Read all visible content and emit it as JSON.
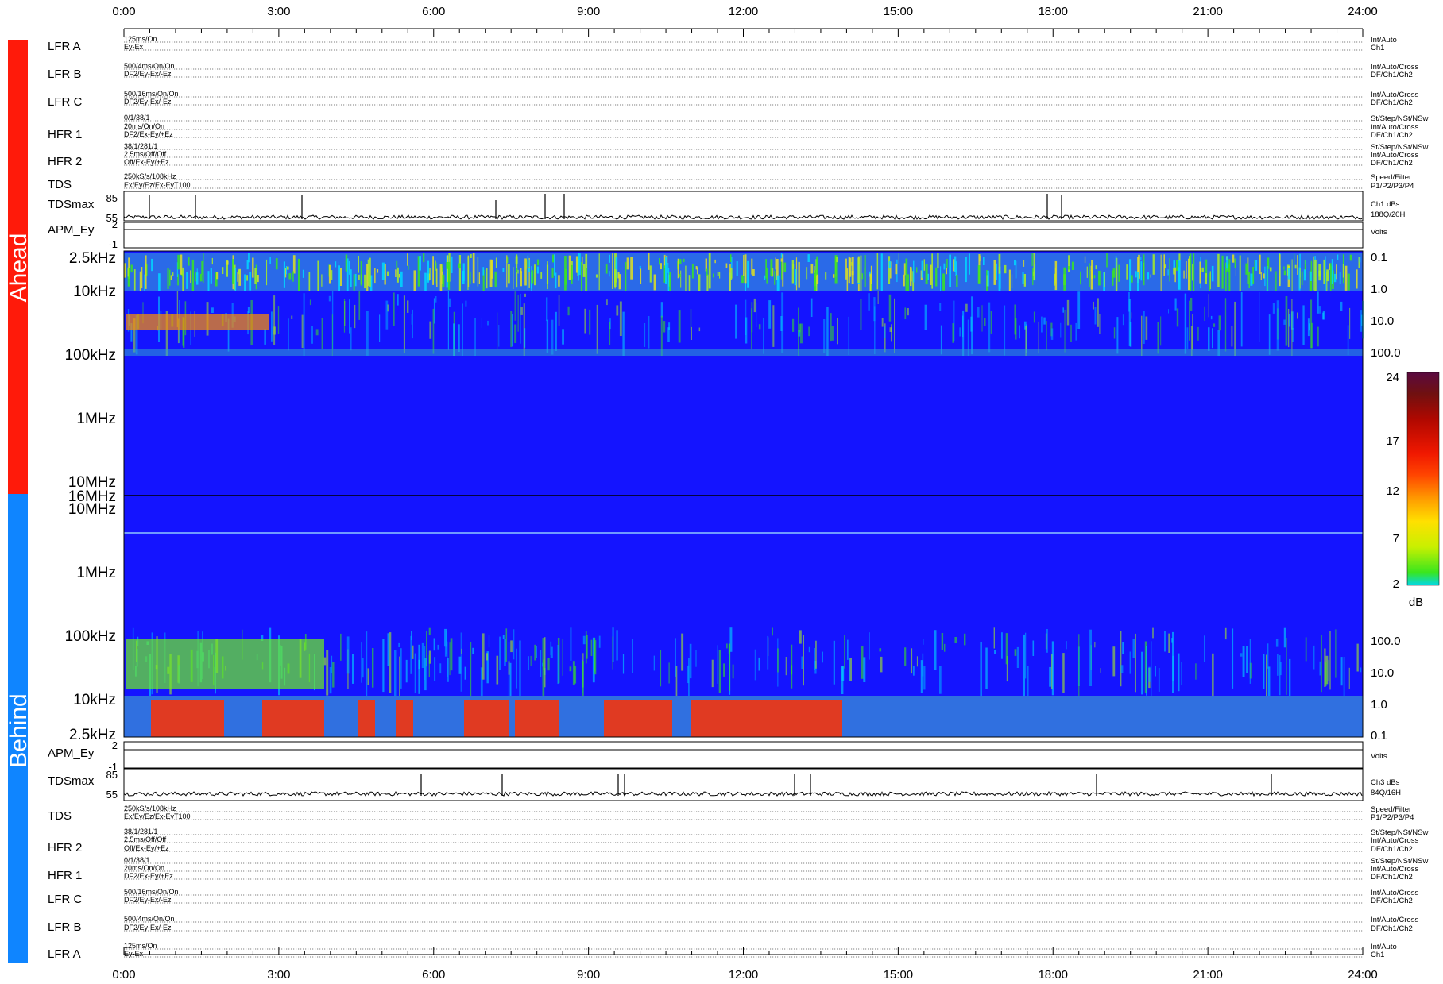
{
  "chart_data": {
    "type": "heatmap",
    "x_ticks": [
      "0:00",
      "3:00",
      "6:00",
      "9:00",
      "12:00",
      "15:00",
      "18:00",
      "21:00",
      "24:00"
    ],
    "side_labels": {
      "top": "Ahead",
      "bottom": "Behind"
    },
    "side_colors": {
      "top": "#ff1a0a",
      "bottom": "#0f85ff"
    },
    "top_instruments": [
      {
        "name": "LFR A",
        "left": [
          "125ms/On",
          "Ey-Ex"
        ],
        "right": [
          "Int/Auto",
          "Ch1"
        ]
      },
      {
        "name": "LFR B",
        "left": [
          "500/4ms/On/On",
          "DF2/Ey-Ex/-Ez"
        ],
        "right": [
          "Int/Auto/Cross",
          "DF/Ch1/Ch2"
        ]
      },
      {
        "name": "LFR C",
        "left": [
          "500/16ms/On/On",
          "DF2/Ey-Ex/-Ez"
        ],
        "right": [
          "Int/Auto/Cross",
          "DF/Ch1/Ch2"
        ]
      },
      {
        "name": "HFR 1",
        "left": [
          "0/1/38/1",
          "20ms/On/On",
          "DF2/Ex-Ey/+Ez"
        ],
        "right": [
          "St/Step/NSt/NSw",
          "Int/Auto/Cross",
          "DF/Ch1/Ch2"
        ]
      },
      {
        "name": "HFR 2",
        "left": [
          "38/1/281/1",
          "2.5ms/Off/Off",
          "Off/Ex-Ey/+Ez"
        ],
        "right": [
          "St/Step/NSt/NSw",
          "Int/Auto/Cross",
          "DF/Ch1/Ch2"
        ]
      },
      {
        "name": "TDS",
        "left": [
          "250kS/s/108kHz",
          "Ex/Ey/Ez/Ex-EyT100"
        ],
        "right": [
          "Speed/Filter",
          "P1/P2/P3/P4"
        ]
      }
    ],
    "bottom_instruments": [
      {
        "name": "TDS",
        "left": [
          "250kS/s/108kHz",
          "Ex/Ey/Ez/Ex-EyT100"
        ],
        "right": [
          "Speed/Filter",
          "P1/P2/P3/P4"
        ]
      },
      {
        "name": "HFR 2",
        "left": [
          "38/1/281/1",
          "2.5ms/Off/Off",
          "Off/Ex-Ey/+Ez"
        ],
        "right": [
          "St/Step/NSt/NSw",
          "Int/Auto/Cross",
          "DF/Ch1/Ch2"
        ]
      },
      {
        "name": "HFR 1",
        "left": [
          "0/1/38/1",
          "20ms/On/On",
          "DF2/Ex-Ey/+Ez"
        ],
        "right": [
          "St/Step/NSt/NSw",
          "Int/Auto/Cross",
          "DF/Ch1/Ch2"
        ]
      },
      {
        "name": "LFR C",
        "left": [
          "500/16ms/On/On",
          "DF2/Ey-Ex/-Ez"
        ],
        "right": [
          "Int/Auto/Cross",
          "DF/Ch1/Ch2"
        ]
      },
      {
        "name": "LFR B",
        "left": [
          "500/4ms/On/On",
          "DF2/Ey-Ex/-Ez"
        ],
        "right": [
          "Int/Auto/Cross",
          "DF/Ch1/Ch2"
        ]
      },
      {
        "name": "LFR A",
        "left": [
          "125ms/On",
          "Ey-Ex"
        ],
        "right": [
          "Int/Auto",
          "Ch1"
        ]
      }
    ],
    "top_tdsmax": {
      "label": "TDSmax",
      "ticks": [
        "85",
        "55"
      ],
      "right": [
        "Ch1 dBs",
        "188Q/20H"
      ]
    },
    "top_apm": {
      "label": "APM_Ey",
      "ticks": [
        "2",
        "-1"
      ],
      "right": [
        "Volts"
      ]
    },
    "bottom_apm": {
      "label": "APM_Ey",
      "ticks": [
        "2",
        "-1"
      ],
      "right": [
        "Volts"
      ]
    },
    "bottom_tdsmax": {
      "label": "TDSmax",
      "ticks": [
        "85",
        "55"
      ],
      "right": [
        "Ch3 dBs",
        "84Q/16H"
      ]
    },
    "spec_top_freq_ticks": [
      "2.5kHz",
      "10kHz",
      "100kHz",
      "1MHz",
      "10MHz",
      "16MHz"
    ],
    "spec_top_right_ticks": [
      "0.1",
      "1.0",
      "10.0",
      "100.0"
    ],
    "spec_bottom_freq_ticks": [
      "10MHz",
      "1MHz",
      "100kHz",
      "10kHz",
      "2.5kHz"
    ],
    "spec_bottom_right_ticks": [
      "100.0",
      "10.0",
      "1.0",
      "0.1"
    ],
    "colorbar": {
      "ticks": [
        "24",
        "17",
        "12",
        "7",
        "2"
      ],
      "label": "dB",
      "min": 2,
      "max": 24
    },
    "colors": {
      "background": "#1414ff",
      "low": "#00e0ff",
      "mid": "#6ef020",
      "high": "#ff2a00",
      "max": "#5a0a40"
    }
  }
}
